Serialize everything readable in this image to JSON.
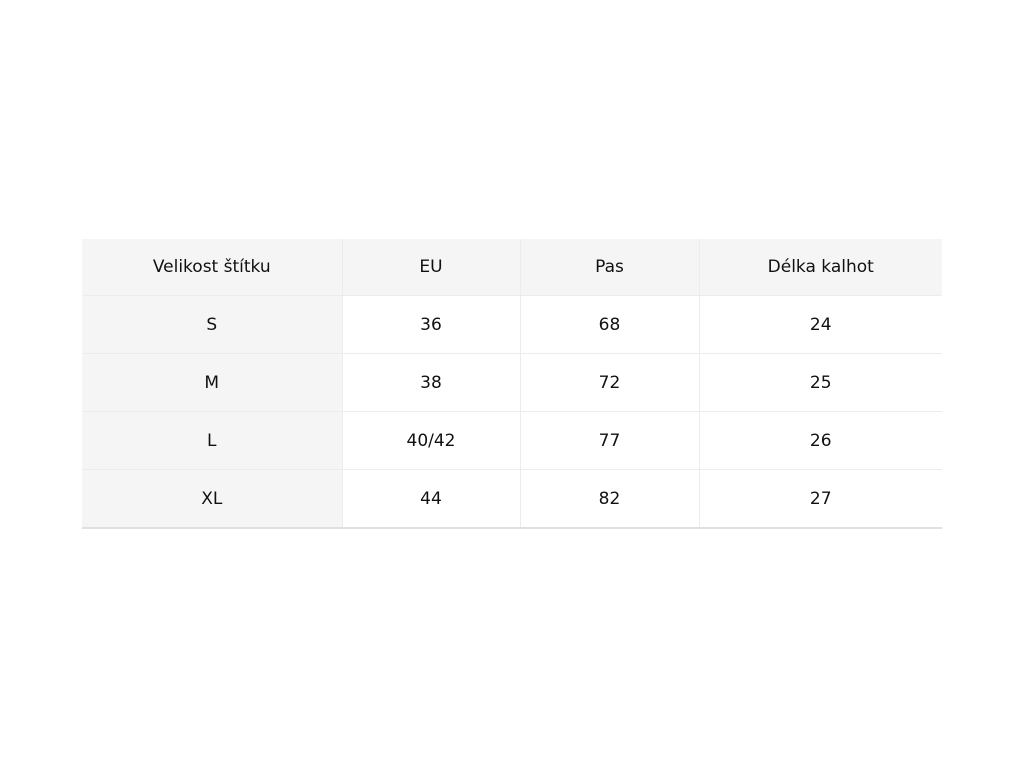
{
  "size_table": {
    "headers": [
      "Velikost štítku",
      "EU",
      "Pas",
      "Délka kalhot"
    ],
    "rows": [
      [
        "S",
        "36",
        "68",
        "24"
      ],
      [
        "M",
        "38",
        "72",
        "25"
      ],
      [
        "L",
        "40/42",
        "77",
        "26"
      ],
      [
        "XL",
        "44",
        "82",
        "27"
      ]
    ]
  }
}
